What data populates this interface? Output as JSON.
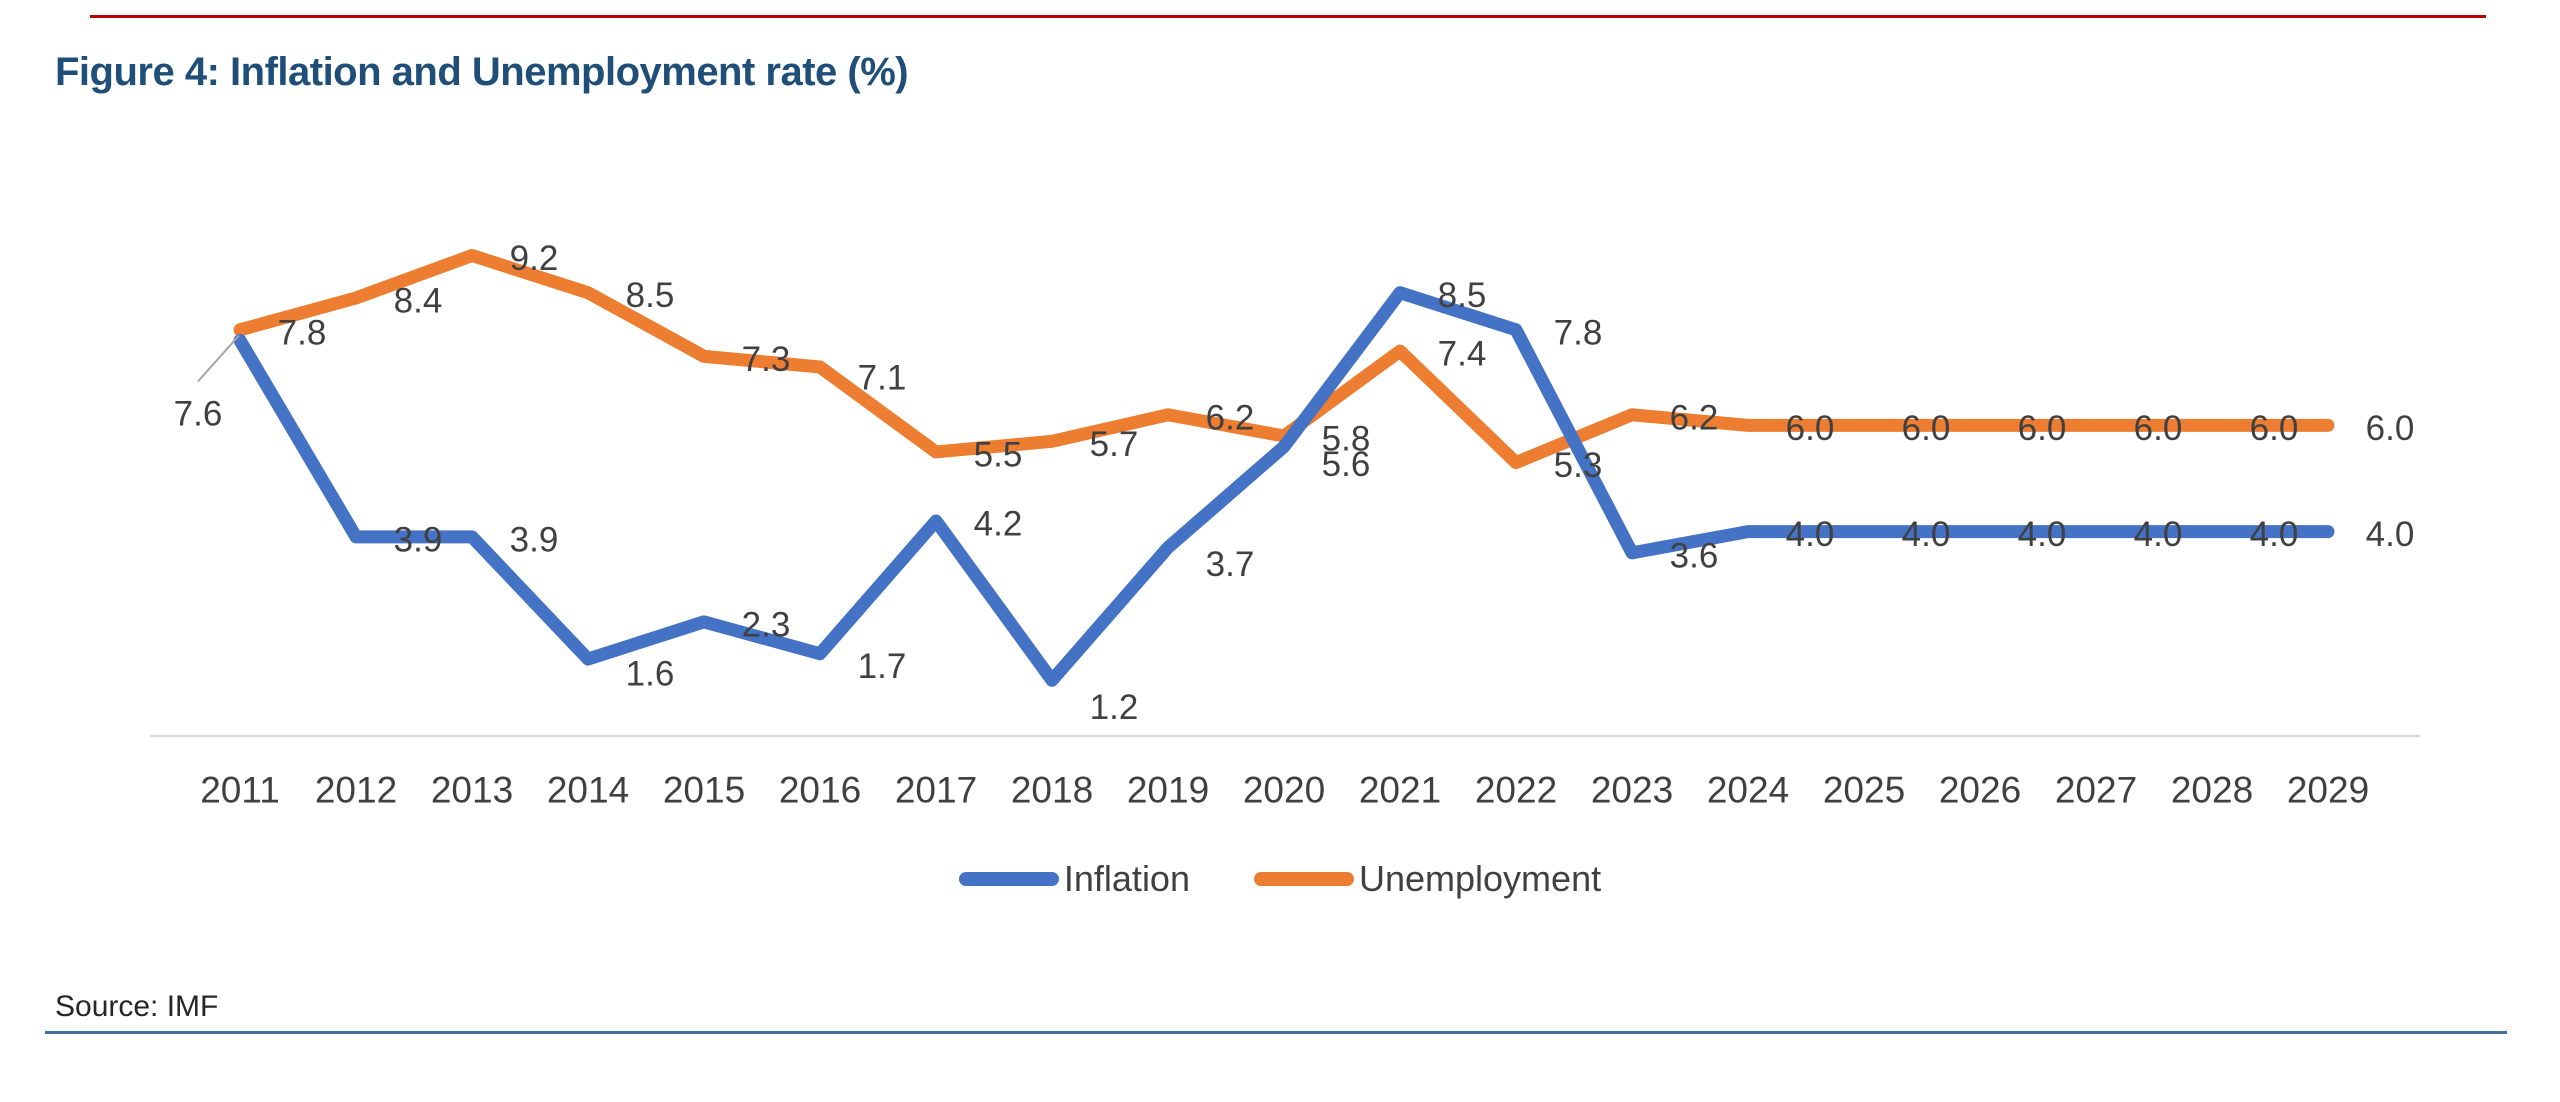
{
  "title": "Figure 4: Inflation and Unemployment rate (%)",
  "source": "Source: IMF",
  "colors": {
    "title": "#1F4E79",
    "top_accent": "#C00000",
    "bottom_rule": "#41719C",
    "axis_line": "#D9D9D9",
    "data_label": "#404040",
    "leader_line": "#A6A6A6",
    "inflation": "#4472C4",
    "unemployment": "#ED7D31"
  },
  "chart_data": {
    "type": "line",
    "categories": [
      "2011",
      "2012",
      "2013",
      "2014",
      "2015",
      "2016",
      "2017",
      "2018",
      "2019",
      "2020",
      "2021",
      "2022",
      "2023",
      "2024",
      "2025",
      "2026",
      "2027",
      "2028",
      "2029"
    ],
    "series": [
      {
        "name": "Inflation",
        "color": "#4472C4",
        "values": [
          7.6,
          3.9,
          3.9,
          1.6,
          2.3,
          1.7,
          4.2,
          1.2,
          3.7,
          5.6,
          8.5,
          7.8,
          3.6,
          4.0,
          4.0,
          4.0,
          4.0,
          4.0,
          4.0
        ]
      },
      {
        "name": "Unemployment",
        "color": "#ED7D31",
        "values": [
          7.8,
          8.4,
          9.2,
          8.5,
          7.3,
          7.1,
          5.5,
          5.7,
          6.2,
          5.8,
          7.4,
          5.3,
          6.2,
          6.0,
          6.0,
          6.0,
          6.0,
          6.0,
          6.0
        ]
      }
    ],
    "title": "Figure 4: Inflation and Unemployment rate (%)",
    "xlabel": "",
    "ylabel": "",
    "ylim": [
      0,
      10
    ],
    "grid": false,
    "legend_position": "bottom",
    "data_labels": true,
    "data_label_decimals": 1
  }
}
